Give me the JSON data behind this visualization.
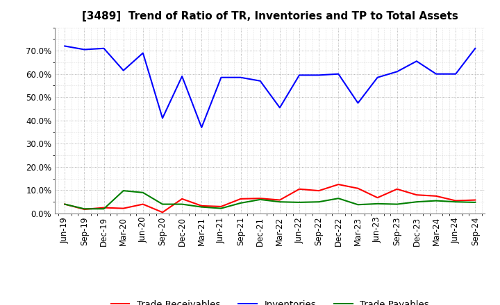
{
  "title": "[3489]  Trend of Ratio of TR, Inventories and TP to Total Assets",
  "x_labels": [
    "Jun-19",
    "Sep-19",
    "Dec-19",
    "Mar-20",
    "Jun-20",
    "Sep-20",
    "Dec-20",
    "Mar-21",
    "Jun-21",
    "Sep-21",
    "Dec-21",
    "Mar-22",
    "Jun-22",
    "Sep-22",
    "Dec-22",
    "Mar-23",
    "Jun-23",
    "Sep-23",
    "Dec-23",
    "Mar-24",
    "Jun-24",
    "Sep-24"
  ],
  "trade_receivables": [
    0.04,
    0.018,
    0.025,
    0.022,
    0.04,
    0.005,
    0.063,
    0.033,
    0.03,
    0.063,
    0.065,
    0.058,
    0.105,
    0.098,
    0.125,
    0.108,
    0.068,
    0.105,
    0.08,
    0.075,
    0.055,
    0.058
  ],
  "inventories": [
    0.72,
    0.705,
    0.71,
    0.615,
    0.69,
    0.41,
    0.59,
    0.37,
    0.585,
    0.585,
    0.57,
    0.455,
    0.595,
    0.595,
    0.6,
    0.475,
    0.585,
    0.61,
    0.655,
    0.6,
    0.6,
    0.71
  ],
  "trade_payables": [
    0.04,
    0.02,
    0.02,
    0.098,
    0.09,
    0.04,
    0.04,
    0.028,
    0.022,
    0.045,
    0.06,
    0.05,
    0.048,
    0.05,
    0.065,
    0.038,
    0.042,
    0.04,
    0.05,
    0.055,
    0.05,
    0.048
  ],
  "tr_color": "#ff0000",
  "inv_color": "#0000ff",
  "tp_color": "#008000",
  "background_color": "#ffffff",
  "plot_bg_color": "#ffffff",
  "grid_color": "#999999",
  "ylim": [
    0.0,
    0.8
  ],
  "yticks": [
    0.0,
    0.1,
    0.2,
    0.3,
    0.4,
    0.5,
    0.6,
    0.7
  ],
  "legend_labels": [
    "Trade Receivables",
    "Inventories",
    "Trade Payables"
  ],
  "title_fontsize": 11,
  "tick_fontsize": 8.5,
  "legend_fontsize": 9.5
}
